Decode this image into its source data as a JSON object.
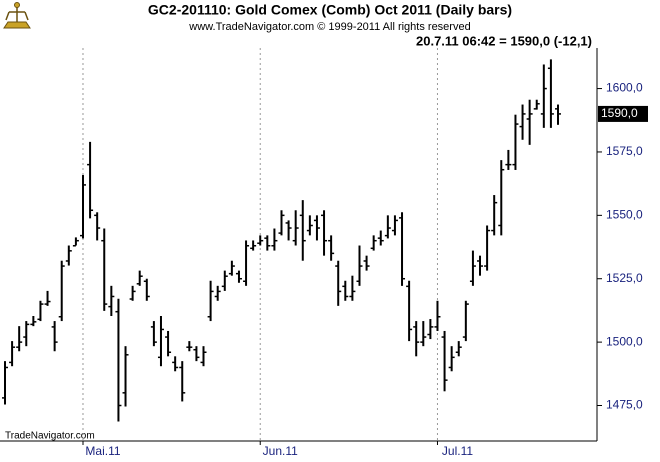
{
  "chart_data": {
    "type": "ohlc",
    "title": "GC2-201110:  Gold Comex (Comb) Oct 2011  (Daily bars)",
    "subtitle": "www.TradeNavigator.com © 1999-2011 All rights reserved",
    "annotation": "20.7.11 06:42 = 1590,0 (-12,1)",
    "watermark": "TradeNavigator.com",
    "last_price": {
      "value": 1590,
      "label": "1590,0"
    },
    "color": "#000000",
    "categories": [
      null,
      null,
      null,
      null,
      null,
      null,
      null,
      null,
      null,
      null,
      null,
      "Mai.11",
      null,
      null,
      null,
      null,
      null,
      null,
      null,
      null,
      null,
      null,
      null,
      null,
      null,
      null,
      null,
      null,
      null,
      null,
      null,
      null,
      null,
      null,
      null,
      null,
      "Jun.11",
      null,
      null,
      null,
      null,
      null,
      null,
      null,
      null,
      null,
      null,
      null,
      null,
      null,
      null,
      null,
      null,
      null,
      null,
      null,
      null,
      null,
      null,
      null,
      null,
      "Jul.11",
      null,
      null,
      null,
      null,
      null,
      null,
      null,
      null,
      null,
      null,
      null,
      null,
      null,
      null,
      null,
      null,
      null
    ],
    "open": [
      1478,
      1492,
      1498,
      1502,
      1507,
      1509,
      1515,
      1506,
      1510,
      1532,
      1538,
      1542,
      1570,
      1550,
      1540,
      1514,
      1512,
      1480,
      1517,
      1523,
      1524,
      1506,
      1494,
      1502,
      1492,
      1490,
      1498,
      1497,
      1492,
      1510,
      1518,
      1522,
      1527,
      1527,
      1524,
      1537,
      1539,
      1541,
      1538,
      1543,
      1547,
      1540,
      1550,
      1544,
      1548,
      1550,
      1540,
      1530,
      1522,
      1518,
      1524,
      1532,
      1537,
      1541,
      1542,
      1544,
      1549,
      1522,
      1506,
      1500,
      1503,
      1506,
      1502,
      1490,
      1496,
      1502,
      1524,
      1532,
      1530,
      1544,
      1546,
      1570,
      1570,
      1585,
      1588,
      1592,
      1590,
      1608,
      1592
    ],
    "high": [
      1492.5,
      1500.4,
      1506.3,
      1508.3,
      1510.3,
      1516.3,
      1520.2,
      1508.3,
      1532.1,
      1538.1,
      1541.3,
      1565.9,
      1579,
      1551.2,
      1544.8,
      1522.2,
      1517.1,
      1498.4,
      1522.2,
      1528.2,
      1525,
      1508.3,
      1510.3,
      1504.4,
      1494.4,
      1492.5,
      1500.4,
      1498.4,
      1498.4,
      1524.2,
      1522.2,
      1528.2,
      1532.1,
      1528.2,
      1540.1,
      1540.1,
      1542.1,
      1542.1,
      1544.8,
      1552,
      1548,
      1552,
      1556,
      1550,
      1550,
      1552,
      1542.1,
      1532.1,
      1524.2,
      1526.2,
      1538.1,
      1534.1,
      1542.1,
      1544,
      1550,
      1550,
      1551.2,
      1524.2,
      1508.3,
      1508.3,
      1509.1,
      1516.3,
      1504.4,
      1498.4,
      1500.4,
      1516.3,
      1536.1,
      1534.1,
      1546,
      1558,
      1571.8,
      1575.8,
      1589.7,
      1593.7,
      1595.6,
      1595.6,
      1609.5,
      1611.5,
      1593.7
    ],
    "low": [
      1475.4,
      1490.5,
      1496.4,
      1498.4,
      1506.3,
      1508.3,
      1514.3,
      1496.4,
      1508.3,
      1530.2,
      1538.1,
      1540.9,
      1548.8,
      1540.1,
      1512.3,
      1510.3,
      1468.7,
      1474.6,
      1516.3,
      1522.2,
      1516.3,
      1498.4,
      1490.5,
      1494.4,
      1488.5,
      1476.6,
      1496.4,
      1492.5,
      1490.5,
      1508.3,
      1516.3,
      1520.2,
      1526.2,
      1523.4,
      1522.2,
      1536.1,
      1538.1,
      1536.1,
      1536.1,
      1542.1,
      1540.1,
      1538.1,
      1532.1,
      1542.1,
      1540.1,
      1534.1,
      1532.1,
      1514.3,
      1516.3,
      1516.3,
      1522.2,
      1528.2,
      1536.1,
      1538.1,
      1540.9,
      1542.1,
      1522.2,
      1500.4,
      1494.4,
      1498.4,
      1501.2,
      1504.4,
      1480.6,
      1488.5,
      1494.4,
      1500.4,
      1522.2,
      1526.2,
      1528.2,
      1542.1,
      1542.1,
      1567.9,
      1567.9,
      1579.8,
      1577.8,
      1591.7,
      1584.5,
      1584.5,
      1585.7
    ],
    "close": [
      1490,
      1498,
      1500,
      1507,
      1508,
      1515,
      1516,
      1500,
      1530,
      1536,
      1540,
      1562,
      1552,
      1545,
      1515,
      1518,
      1475,
      1495,
      1520,
      1526,
      1518,
      1500,
      1505,
      1496,
      1490,
      1480,
      1498,
      1494,
      1496,
      1520,
      1520,
      1526,
      1530,
      1525,
      1538,
      1538,
      1540,
      1538,
      1540,
      1550,
      1545,
      1545,
      1540,
      1546,
      1545,
      1540,
      1535,
      1520,
      1518,
      1520,
      1530,
      1530,
      1540,
      1540,
      1545,
      1548,
      1525,
      1505,
      1500,
      1502,
      1506,
      1510,
      1485,
      1494,
      1498,
      1515,
      1530,
      1530,
      1544,
      1555,
      1568,
      1570,
      1586,
      1590,
      1590,
      1594,
      1600,
      1590,
      1590
    ],
    "ylim": [
      1461,
      1616
    ],
    "yticks": [
      {
        "value": 1475,
        "label": "1475,0"
      },
      {
        "value": 1500,
        "label": "1500,0"
      },
      {
        "value": 1525,
        "label": "1525,0"
      },
      {
        "value": 1550,
        "label": "1550,0"
      },
      {
        "value": 1575,
        "label": "1575,0"
      },
      {
        "value": 1600,
        "label": "1600,0"
      }
    ],
    "grid": true
  }
}
